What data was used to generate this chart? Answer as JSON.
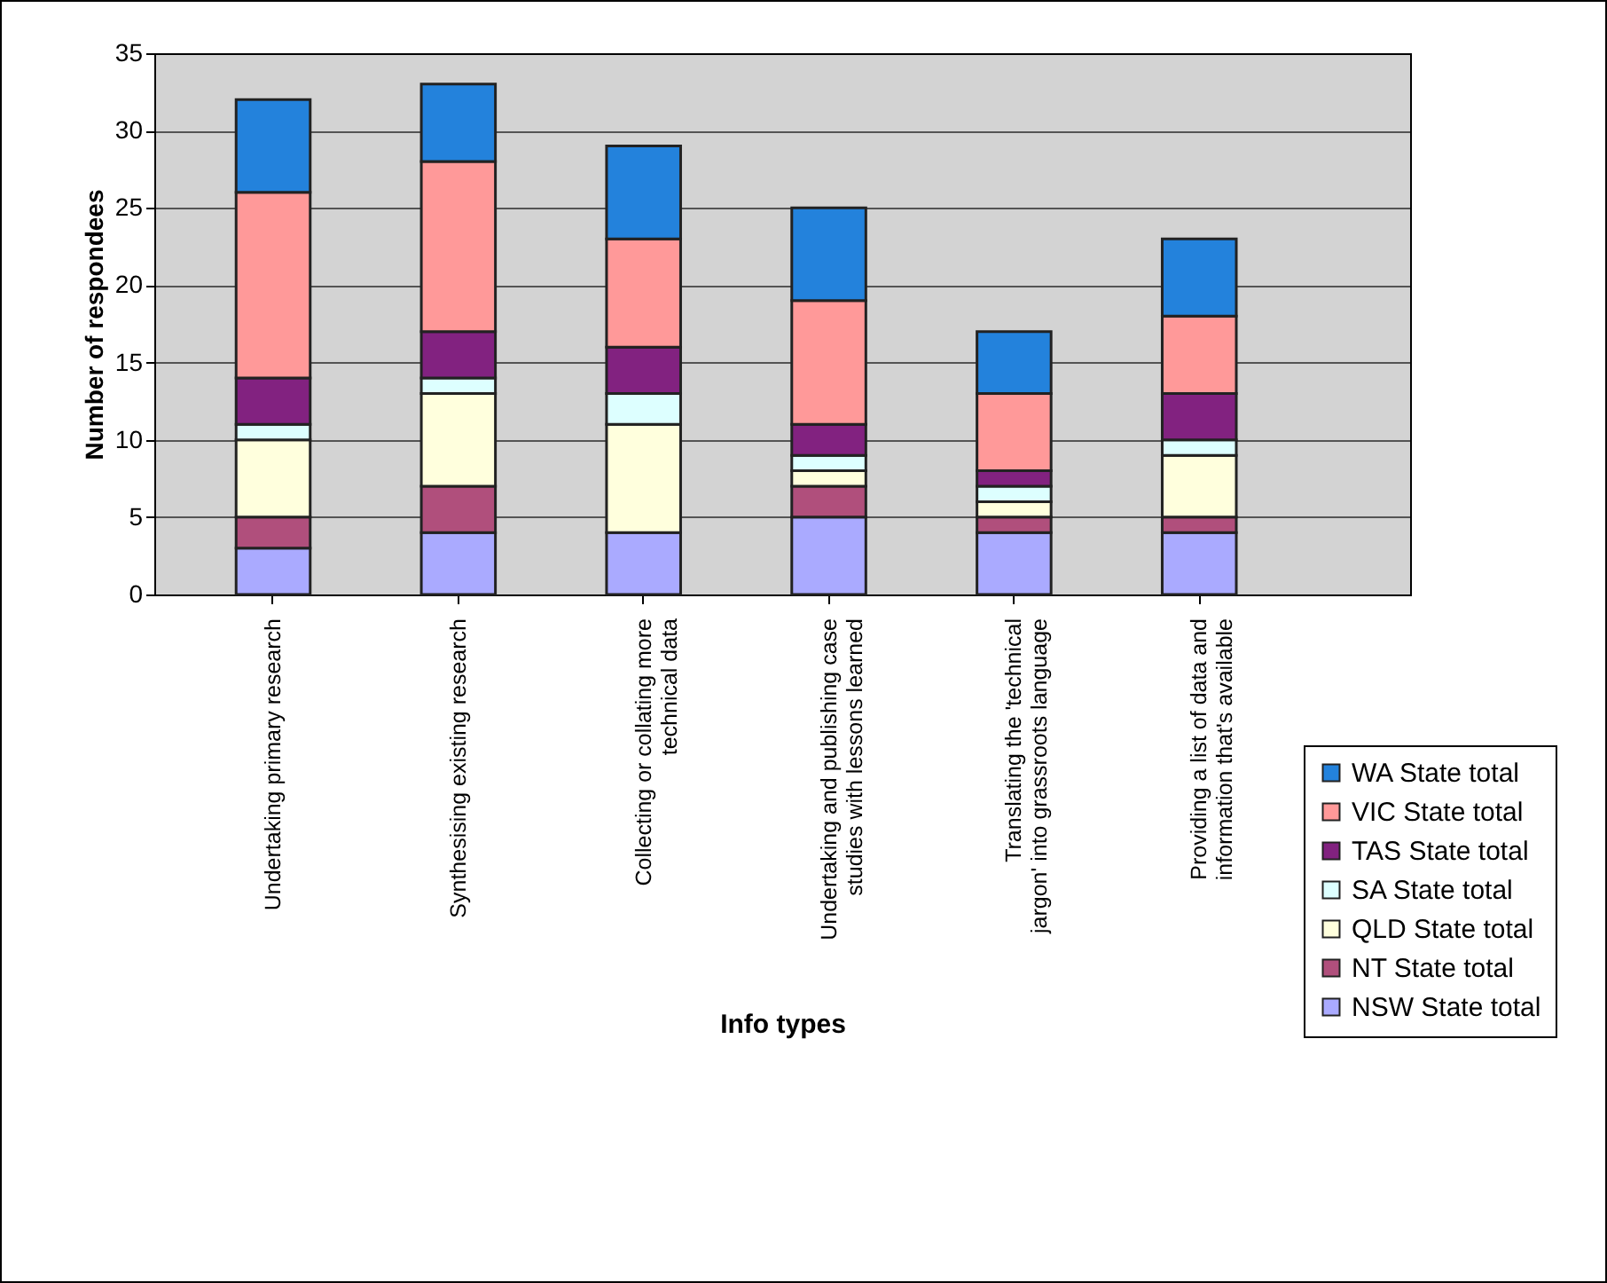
{
  "chart_data": {
    "type": "bar",
    "stacked": true,
    "xlabel": "Info types",
    "ylabel": "Number of respondees",
    "categories": [
      "Undertaking primary research",
      "Synthesising existing research",
      "Collecting or collating more technical data",
      "Undertaking and publishing case studies with lessons learned",
      "Translating the 'technical jargon' into grassroots language",
      "Providing a list of data and information that's available"
    ],
    "series": [
      {
        "name": "NSW State total",
        "color": "#aaaaff",
        "values": [
          3,
          4,
          4,
          5,
          4,
          4
        ]
      },
      {
        "name": "NT State total",
        "color": "#b04f7c",
        "values": [
          2,
          3,
          0,
          2,
          1,
          1
        ]
      },
      {
        "name": "QLD State total",
        "color": "#ffffdd",
        "values": [
          5,
          6,
          7,
          1,
          1,
          4
        ]
      },
      {
        "name": "SA State total",
        "color": "#ddffff",
        "values": [
          1,
          1,
          2,
          1,
          1,
          1
        ]
      },
      {
        "name": "TAS State total",
        "color": "#822280",
        "values": [
          3,
          3,
          3,
          2,
          1,
          3
        ]
      },
      {
        "name": "VIC State total",
        "color": "#ff9999",
        "values": [
          12,
          11,
          7,
          8,
          5,
          5
        ]
      },
      {
        "name": "WA State total",
        "color": "#2382dc",
        "values": [
          6,
          5,
          6,
          6,
          4,
          5
        ]
      }
    ],
    "ylim": [
      0,
      35
    ],
    "yticks": [
      0,
      5,
      10,
      15,
      20,
      25,
      30,
      35
    ],
    "grid": "y",
    "legend": "bottom right"
  }
}
